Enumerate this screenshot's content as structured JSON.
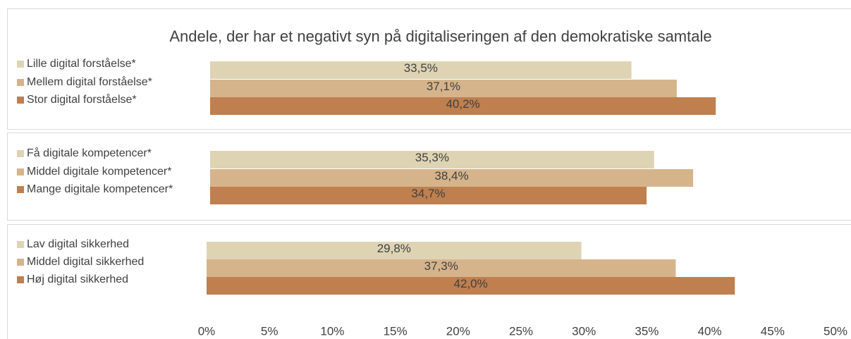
{
  "chart_data": [
    {
      "type": "bar",
      "title": "Andele, der har et negativt syn på digitaliseringen af den demokratiske samtale",
      "categories": [
        "Lille digital forståelse*",
        "Mellem digital forståelse*",
        "Stor digital forståelse*"
      ],
      "values": [
        33.5,
        37.1,
        40.2
      ],
      "value_labels": [
        "33,5%",
        "37,1%",
        "40,2%"
      ],
      "colors": [
        "#ded4b4",
        "#d6b48b",
        "#bf7f4e"
      ],
      "xlim": [
        0,
        50
      ]
    },
    {
      "type": "bar",
      "categories": [
        "Få digitale kompetencer*",
        "Middel digitale kompetencer*",
        "Mange digitale kompetencer*"
      ],
      "values": [
        35.3,
        38.4,
        34.7
      ],
      "value_labels": [
        "35,3%",
        "38,4%",
        "34,7%"
      ],
      "colors": [
        "#ded4b4",
        "#d6b48b",
        "#bf7f4e"
      ],
      "xlim": [
        0,
        50
      ]
    },
    {
      "type": "bar",
      "categories": [
        "Lav digital sikkerhed",
        "Middel digital sikkerhed",
        "Høj digital sikkerhed"
      ],
      "values": [
        29.8,
        37.3,
        42.0
      ],
      "value_labels": [
        "29,8%",
        "37,3%",
        "42,0%"
      ],
      "colors": [
        "#ded4b4",
        "#d6b48b",
        "#bf7f4e"
      ],
      "xlim": [
        0,
        50
      ],
      "xticks": [
        {
          "value": 0,
          "label": "0%"
        },
        {
          "value": 5,
          "label": "5%"
        },
        {
          "value": 10,
          "label": "10%"
        },
        {
          "value": 15,
          "label": "15%"
        },
        {
          "value": 20,
          "label": "20%"
        },
        {
          "value": 25,
          "label": "25%"
        },
        {
          "value": 30,
          "label": "30%"
        },
        {
          "value": 35,
          "label": "35%"
        },
        {
          "value": 40,
          "label": "40%"
        },
        {
          "value": 45,
          "label": "45%"
        },
        {
          "value": 50,
          "label": "50%"
        }
      ]
    }
  ]
}
